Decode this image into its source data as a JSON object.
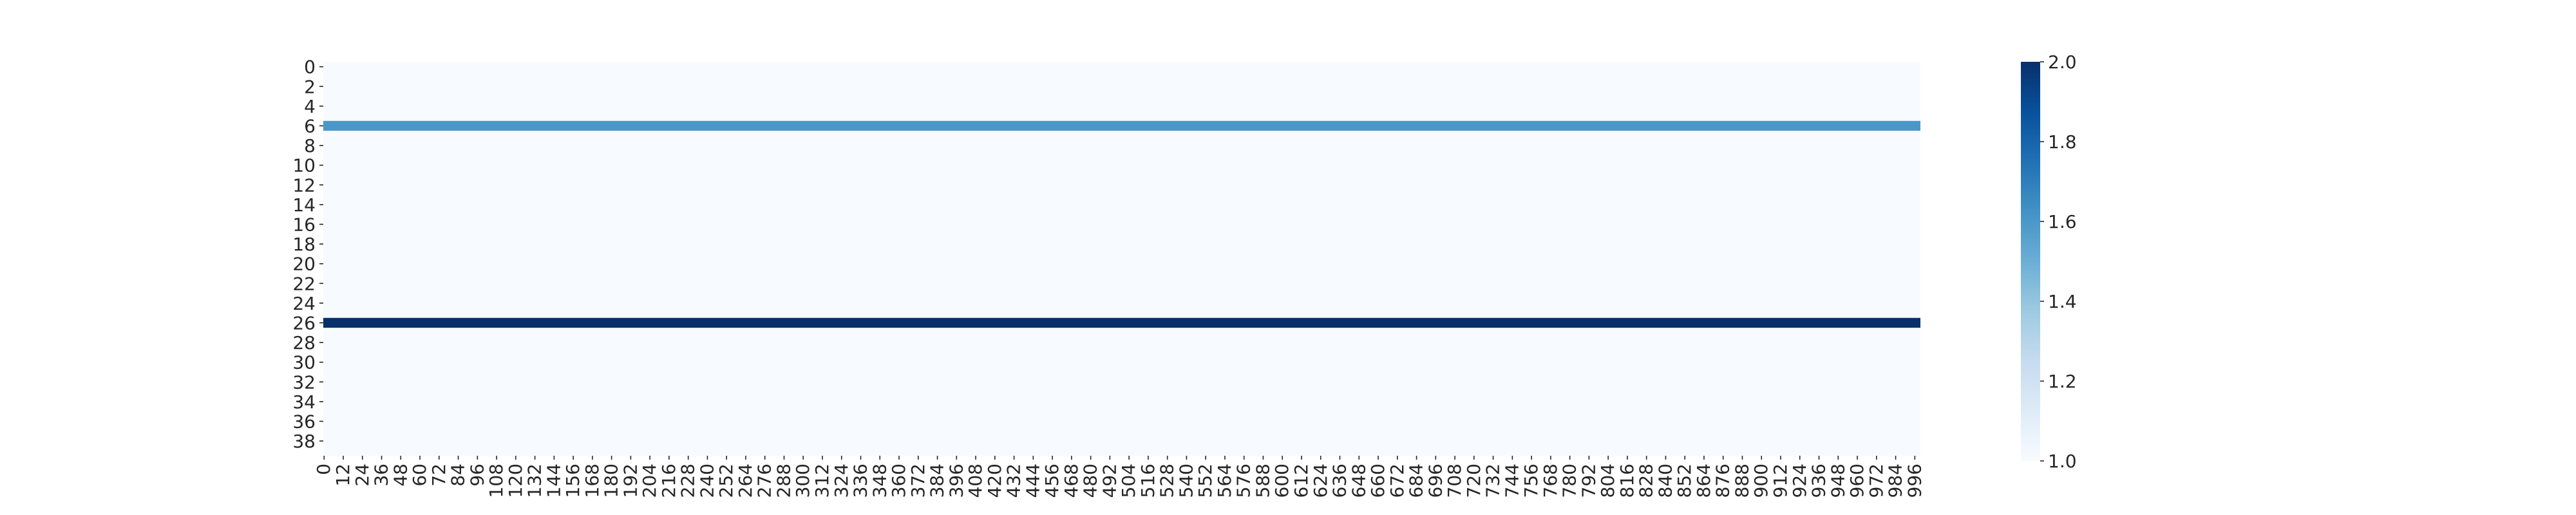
{
  "chart_data": {
    "type": "heatmap",
    "title": "",
    "xlabel": "",
    "ylabel": "",
    "n_rows": 40,
    "n_cols": 1000,
    "default_value": 1.0,
    "row_values": [
      {
        "row": 6,
        "value": 1.6
      },
      {
        "row": 26,
        "value": 2.0
      }
    ],
    "x_tick_labels": [
      "0",
      "12",
      "24",
      "36",
      "48",
      "60",
      "72",
      "84",
      "96",
      "108",
      "120",
      "132",
      "144",
      "156",
      "168",
      "180",
      "192",
      "204",
      "216",
      "228",
      "240",
      "252",
      "264",
      "276",
      "288",
      "300",
      "312",
      "324",
      "336",
      "348",
      "360",
      "372",
      "384",
      "396",
      "408",
      "420",
      "432",
      "444",
      "456",
      "468",
      "480",
      "492",
      "504",
      "516",
      "528",
      "540",
      "552",
      "564",
      "576",
      "588",
      "600",
      "612",
      "624",
      "636",
      "648",
      "660",
      "672",
      "684",
      "696",
      "708",
      "720",
      "732",
      "744",
      "756",
      "768",
      "780",
      "792",
      "804",
      "816",
      "828",
      "840",
      "852",
      "864",
      "876",
      "888",
      "900",
      "912",
      "924",
      "936",
      "948",
      "960",
      "972",
      "984",
      "996"
    ],
    "y_tick_labels": [
      "0",
      "2",
      "4",
      "6",
      "8",
      "10",
      "12",
      "14",
      "16",
      "18",
      "20",
      "22",
      "24",
      "26",
      "28",
      "30",
      "32",
      "34",
      "36",
      "38"
    ],
    "colorbar": {
      "vmin": 1.0,
      "vmax": 2.0,
      "tick_labels": [
        "1.0",
        "1.2",
        "1.4",
        "1.6",
        "1.8",
        "2.0"
      ],
      "colormap": "Blues",
      "colormap_stops": [
        "#f7fbff",
        "#deebf7",
        "#c6dbef",
        "#9ecae1",
        "#6baed6",
        "#4292c6",
        "#2171b5",
        "#08519c",
        "#08306b"
      ]
    }
  }
}
